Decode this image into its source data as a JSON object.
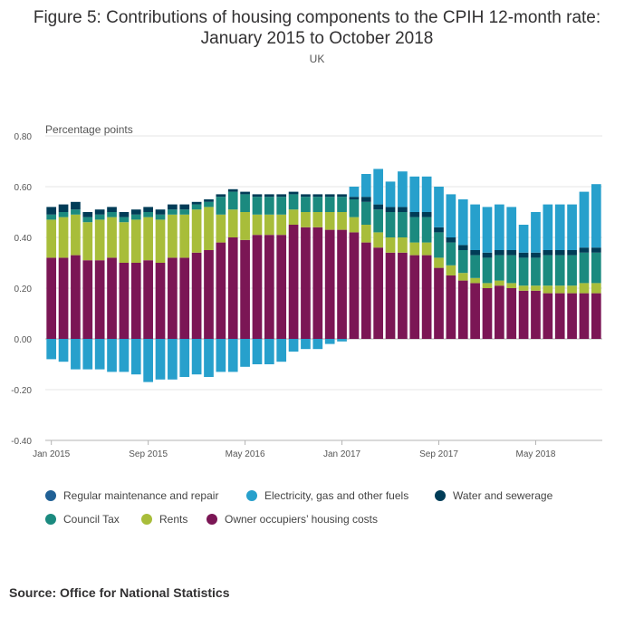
{
  "chart_data": {
    "type": "bar",
    "stacked": true,
    "title_line1": "Figure 5: Contributions of housing components to the CPIH 12-month rate:",
    "title_line2": "January 2015 to October 2018",
    "subtitle": "UK",
    "ylabel": "Percentage points",
    "ylim": [
      -0.4,
      0.8
    ],
    "yticks": [
      "0.80",
      "0.60",
      "0.40",
      "0.20",
      "0.00",
      "-0.20",
      "-0.40"
    ],
    "ytick_values": [
      0.8,
      0.6,
      0.4,
      0.2,
      0.0,
      -0.2,
      -0.4
    ],
    "xtick_labels": [
      "Jan 2015",
      "Sep 2015",
      "May 2016",
      "Jan 2017",
      "Sep 2017",
      "May 2018"
    ],
    "xtick_indices": [
      0,
      8,
      16,
      24,
      32,
      40
    ],
    "grid": true,
    "legend_position": "bottom",
    "categories": [
      "Jan 2015",
      "Feb 2015",
      "Mar 2015",
      "Apr 2015",
      "May 2015",
      "Jun 2015",
      "Jul 2015",
      "Aug 2015",
      "Sep 2015",
      "Oct 2015",
      "Nov 2015",
      "Dec 2015",
      "Jan 2016",
      "Feb 2016",
      "Mar 2016",
      "Apr 2016",
      "May 2016",
      "Jun 2016",
      "Jul 2016",
      "Aug 2016",
      "Sep 2016",
      "Oct 2016",
      "Nov 2016",
      "Dec 2016",
      "Jan 2017",
      "Feb 2017",
      "Mar 2017",
      "Apr 2017",
      "May 2017",
      "Jun 2017",
      "Jul 2017",
      "Aug 2017",
      "Sep 2017",
      "Oct 2017",
      "Nov 2017",
      "Dec 2017",
      "Jan 2018",
      "Feb 2018",
      "Mar 2018",
      "Apr 2018",
      "May 2018",
      "Jun 2018",
      "Jul 2018",
      "Aug 2018",
      "Sep 2018",
      "Oct 2018"
    ],
    "series": [
      {
        "name": "Owner occupiers’ housing costs",
        "color": "#7b1655",
        "values": [
          0.32,
          0.32,
          0.33,
          0.31,
          0.31,
          0.32,
          0.3,
          0.3,
          0.31,
          0.3,
          0.32,
          0.32,
          0.34,
          0.35,
          0.38,
          0.4,
          0.39,
          0.41,
          0.41,
          0.41,
          0.45,
          0.44,
          0.44,
          0.43,
          0.43,
          0.42,
          0.38,
          0.36,
          0.34,
          0.34,
          0.33,
          0.33,
          0.28,
          0.25,
          0.23,
          0.22,
          0.2,
          0.21,
          0.2,
          0.19,
          0.19,
          0.18,
          0.18,
          0.18,
          0.18,
          0.18
        ]
      },
      {
        "name": "Rents",
        "color": "#a8bd3a",
        "values": [
          0.15,
          0.16,
          0.16,
          0.15,
          0.16,
          0.16,
          0.16,
          0.17,
          0.17,
          0.17,
          0.17,
          0.17,
          0.17,
          0.17,
          0.11,
          0.11,
          0.11,
          0.08,
          0.08,
          0.08,
          0.06,
          0.06,
          0.06,
          0.07,
          0.07,
          0.06,
          0.07,
          0.06,
          0.06,
          0.06,
          0.05,
          0.05,
          0.04,
          0.04,
          0.03,
          0.02,
          0.02,
          0.02,
          0.02,
          0.02,
          0.02,
          0.03,
          0.03,
          0.03,
          0.04,
          0.04
        ]
      },
      {
        "name": "Council Tax",
        "color": "#1b8a7f",
        "values": [
          0.02,
          0.02,
          0.02,
          0.02,
          0.02,
          0.02,
          0.02,
          0.02,
          0.02,
          0.02,
          0.02,
          0.02,
          0.02,
          0.02,
          0.07,
          0.07,
          0.07,
          0.07,
          0.07,
          0.07,
          0.06,
          0.06,
          0.06,
          0.06,
          0.06,
          0.07,
          0.09,
          0.09,
          0.1,
          0.1,
          0.1,
          0.1,
          0.1,
          0.09,
          0.09,
          0.09,
          0.1,
          0.1,
          0.11,
          0.11,
          0.11,
          0.12,
          0.12,
          0.12,
          0.12,
          0.12
        ]
      },
      {
        "name": "Regular maintenance and repair",
        "color": "#206095",
        "values": [
          0.0,
          0.0,
          0.0,
          0.0,
          0.0,
          0.0,
          0.0,
          0.0,
          0.0,
          0.0,
          0.0,
          0.0,
          0.0,
          0.0,
          0.0,
          0.0,
          0.0,
          0.0,
          0.0,
          0.0,
          0.0,
          0.0,
          0.0,
          0.0,
          0.0,
          0.0,
          0.0,
          0.0,
          0.0,
          0.0,
          0.0,
          0.0,
          0.0,
          0.0,
          0.0,
          0.0,
          0.0,
          0.0,
          0.0,
          0.0,
          0.0,
          0.0,
          0.0,
          0.0,
          0.0,
          0.0
        ]
      },
      {
        "name": "Water and sewerage",
        "color": "#003c57",
        "values": [
          0.03,
          0.03,
          0.03,
          0.02,
          0.02,
          0.02,
          0.02,
          0.02,
          0.02,
          0.02,
          0.02,
          0.02,
          0.01,
          0.01,
          0.01,
          0.01,
          0.01,
          0.01,
          0.01,
          0.01,
          0.01,
          0.01,
          0.01,
          0.01,
          0.01,
          0.01,
          0.02,
          0.02,
          0.02,
          0.02,
          0.02,
          0.02,
          0.02,
          0.02,
          0.02,
          0.02,
          0.02,
          0.02,
          0.02,
          0.02,
          0.02,
          0.02,
          0.02,
          0.02,
          0.02,
          0.02
        ]
      },
      {
        "name": "Electricity, gas and other fuels",
        "color": "#27a0cc",
        "values": [
          -0.08,
          -0.09,
          -0.12,
          -0.12,
          -0.12,
          -0.13,
          -0.13,
          -0.14,
          -0.17,
          -0.16,
          -0.16,
          -0.15,
          -0.14,
          -0.15,
          -0.13,
          -0.13,
          -0.11,
          -0.1,
          -0.1,
          -0.09,
          -0.05,
          -0.04,
          -0.04,
          -0.02,
          -0.01,
          0.04,
          0.09,
          0.14,
          0.1,
          0.14,
          0.14,
          0.14,
          0.16,
          0.17,
          0.18,
          0.18,
          0.18,
          0.18,
          0.17,
          0.11,
          0.16,
          0.18,
          0.18,
          0.18,
          0.22,
          0.25
        ]
      }
    ]
  },
  "legend": [
    {
      "label": "Regular maintenance and repair",
      "color": "#206095"
    },
    {
      "label": "Electricity, gas and other fuels",
      "color": "#27a0cc"
    },
    {
      "label": "Water and sewerage",
      "color": "#003c57"
    },
    {
      "label": "Council Tax",
      "color": "#1b8a7f"
    },
    {
      "label": "Rents",
      "color": "#a8bd3a"
    },
    {
      "label": "Owner occupiers’ housing costs",
      "color": "#7b1655"
    }
  ],
  "source": "Source: Office for National Statistics"
}
